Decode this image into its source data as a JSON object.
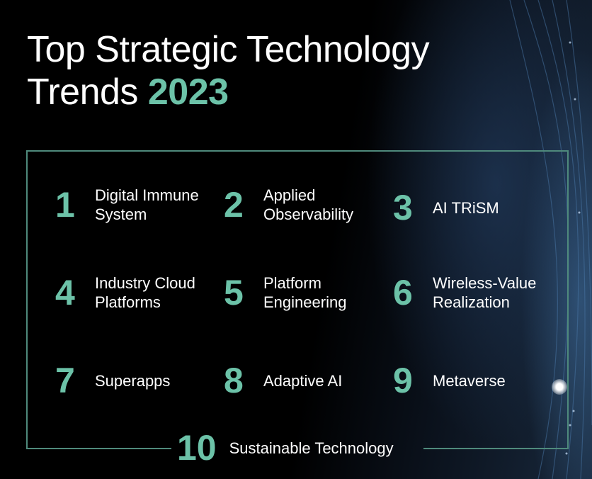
{
  "title": {
    "line1": "Top Strategic Technology",
    "line2_prefix": "Trends",
    "year": "2023"
  },
  "trends": [
    {
      "number": "1",
      "label_line1": "Digital Immune",
      "label_line2": "System"
    },
    {
      "number": "2",
      "label_line1": "Applied",
      "label_line2": "Observability"
    },
    {
      "number": "3",
      "label_line1": "AI TRiSM",
      "label_line2": ""
    },
    {
      "number": "4",
      "label_line1": "Industry Cloud",
      "label_line2": "Platforms"
    },
    {
      "number": "5",
      "label_line1": "Platform",
      "label_line2": "Engineering"
    },
    {
      "number": "6",
      "label_line1": "Wireless-Value",
      "label_line2": "Realization"
    },
    {
      "number": "7",
      "label_line1": "Superapps",
      "label_line2": ""
    },
    {
      "number": "8",
      "label_line1": "Adaptive AI",
      "label_line2": ""
    },
    {
      "number": "9",
      "label_line1": "Metaverse",
      "label_line2": ""
    },
    {
      "number": "10",
      "label_line1": "Sustainable Technology",
      "label_line2": ""
    }
  ],
  "colors": {
    "accent": "#6cc2a8",
    "frame": "#4f8a7c",
    "background": "#000000"
  }
}
